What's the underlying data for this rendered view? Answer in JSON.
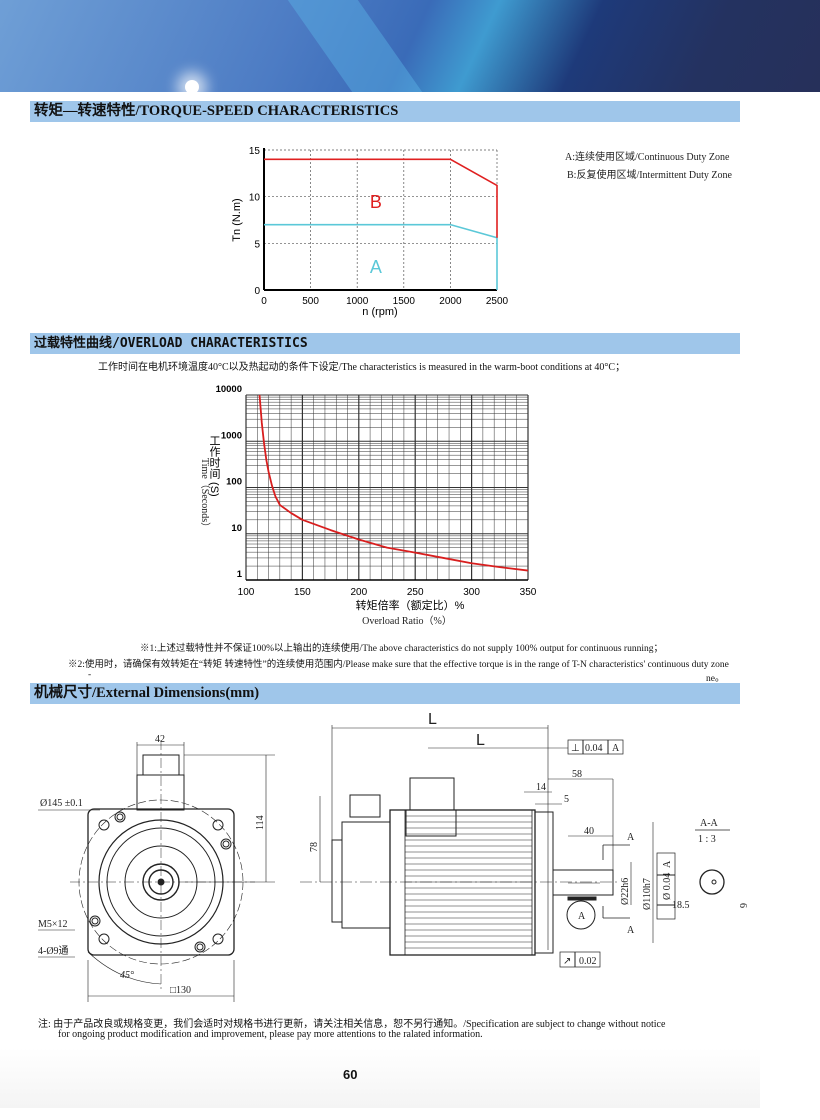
{
  "sections": {
    "torque": "转矩—转速特性/TORQUE-SPEED CHARACTERISTICS",
    "overload": "过载特性曲线/OVERLOAD CHARACTERISTICS",
    "dimensions": "机械尺寸/External Dimensions(mm)"
  },
  "chart_data": [
    {
      "type": "line",
      "xlabel": "n (rpm)",
      "ylabel": "Tn (N.m)",
      "xlim": [
        0,
        2500
      ],
      "ylim": [
        0,
        15
      ],
      "x_ticks": [
        "0",
        "500",
        "1000",
        "1500",
        "2000",
        "2500"
      ],
      "y_ticks": [
        "0",
        "5",
        "10",
        "15"
      ],
      "grid": "dashed",
      "legend_position": "right",
      "series": [
        {
          "name": "A:连续使用区域/Continuous Duty Zone",
          "zone_label": "A",
          "color": "#5bc8d8",
          "x": [
            0,
            2000,
            2500,
            2500
          ],
          "y": [
            7,
            7,
            5.6,
            0
          ]
        },
        {
          "name": "B:反复使用区域/Intermittent Duty Zone",
          "zone_label": "B",
          "color": "#e02020",
          "x": [
            0,
            2000,
            2500,
            2500
          ],
          "y": [
            14,
            14,
            11.2,
            5.6
          ]
        }
      ]
    },
    {
      "type": "line",
      "subtitle": "工作时间在电机环境温度40°C以及热起动的条件下设定/The characteristics is measured in the warm-boot conditions at 40°C；",
      "xlabel": "转矩倍率（额定比）%",
      "xlabel_en": "Overload Ratio（%）",
      "ylabel": "工作时间 (S)",
      "ylabel_en": "Time（Seconds）",
      "xlim": [
        100,
        350
      ],
      "ylim": [
        1,
        10000
      ],
      "y_scale": "log",
      "x_ticks": [
        "100",
        "150",
        "200",
        "250",
        "300",
        "350"
      ],
      "y_ticks": [
        "1",
        "10",
        "100",
        "1000",
        "10000"
      ],
      "grid": "on",
      "series": [
        {
          "color": "#d81e1e",
          "x": [
            112,
            114,
            116,
            118,
            120,
            123,
            126,
            130,
            140,
            150,
            175,
            200,
            225,
            250,
            275,
            300,
            325,
            350
          ],
          "y": [
            10000,
            2500,
            900,
            400,
            220,
            110,
            65,
            42,
            28,
            20,
            12,
            7.5,
            5,
            3.9,
            3,
            2.3,
            1.9,
            1.6
          ]
        }
      ]
    }
  ],
  "overload_notes": [
    "※1:上述过载特性并不保证100%以上输出的连续使用/The above characteristics do not supply 100% output for continuous running；",
    "※2:使用时，请确保有效转矩在“转矩 转速特性”的连续使用范围内/Please make sure that the effective torque is in the range of T-N characteristics' continuous duty zone",
    "-",
    "ne。"
  ],
  "drawing_front": {
    "connector_width": "42",
    "pcd": "Ø145 ±0.1",
    "height": "114",
    "thread": "M5×12",
    "holes": "4-Ø9通",
    "angle": "45°",
    "flange": "□130"
  },
  "drawing_side": {
    "length_total": "L",
    "length_body": "L",
    "perp_symbol": "⊥",
    "perp_tol": "0.04",
    "datum": "A",
    "shaft_len": "58",
    "dim_14": "14",
    "dim_5": "5",
    "height_78": "78",
    "key_len": "40",
    "section_mark_top": "A",
    "section_mark_bottom": "A",
    "shaft_dia": "Ø22h6",
    "spigot_dia": "Ø110h7",
    "conc_tol": "Ø 0.04",
    "conc_datum": "A",
    "datum_circle": "A",
    "runout_symbol": "↗",
    "runout_tol": "0.02",
    "section_title": "A-A",
    "section_scale": "1 : 3",
    "key_depth": "18.5",
    "key_width": "6"
  },
  "footer_note": {
    "line1": "注:  由于产品改良或规格变更，我们会适时对规格书进行更新，请关注相关信息，恕不另行通知。/Specification are subject to change without notice",
    "line2": "for ongoing product modification and improvement, please pay more attentions to the ralated information."
  },
  "page_number": "60"
}
